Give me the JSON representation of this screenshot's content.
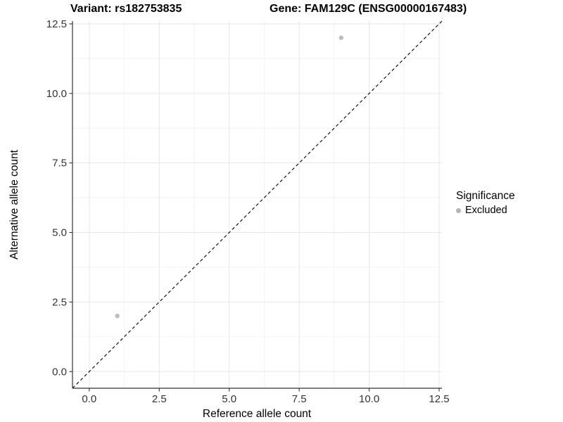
{
  "chart_data": {
    "type": "scatter",
    "title_left": "Variant: rs182753835",
    "title_right": "Gene: FAM129C (ENSG00000167483)",
    "xlabel": "Reference allele count",
    "ylabel": "Alternative allele count",
    "xlim": [
      -0.6,
      12.6
    ],
    "ylim": [
      -0.6,
      12.6
    ],
    "x_breaks": [
      0,
      2.5,
      5,
      7.5,
      10,
      12.5
    ],
    "x_tick_labels": [
      "0.0",
      "2.5",
      "5.0",
      "7.5",
      "10.0",
      "12.5"
    ],
    "y_breaks": [
      0,
      2.5,
      5,
      7.5,
      10,
      12.5
    ],
    "y_tick_labels": [
      "0.0",
      "2.5",
      "5.0",
      "7.5",
      "10.0",
      "12.5"
    ],
    "minor_breaks": [
      1.25,
      3.75,
      6.25,
      8.75,
      11.25
    ],
    "grid": "major+minor",
    "points": [
      {
        "x": 1,
        "y": 2,
        "series": "Excluded"
      },
      {
        "x": 9,
        "y": 12,
        "series": "Excluded"
      }
    ],
    "identity_line": {
      "slope": 1,
      "intercept": 0,
      "style": "dashed",
      "color": "#000000"
    },
    "legend": {
      "position": "right",
      "title": "Significance",
      "items": [
        {
          "label": "Excluded",
          "color": "#b5b5b5"
        }
      ]
    },
    "colors": {
      "point": "#bdbdbd",
      "grid_major": "#e6e6e6",
      "grid_minor": "#f2f2f2",
      "axis_line": "#333333",
      "tick_text": "#333333",
      "background": "#ffffff"
    }
  }
}
